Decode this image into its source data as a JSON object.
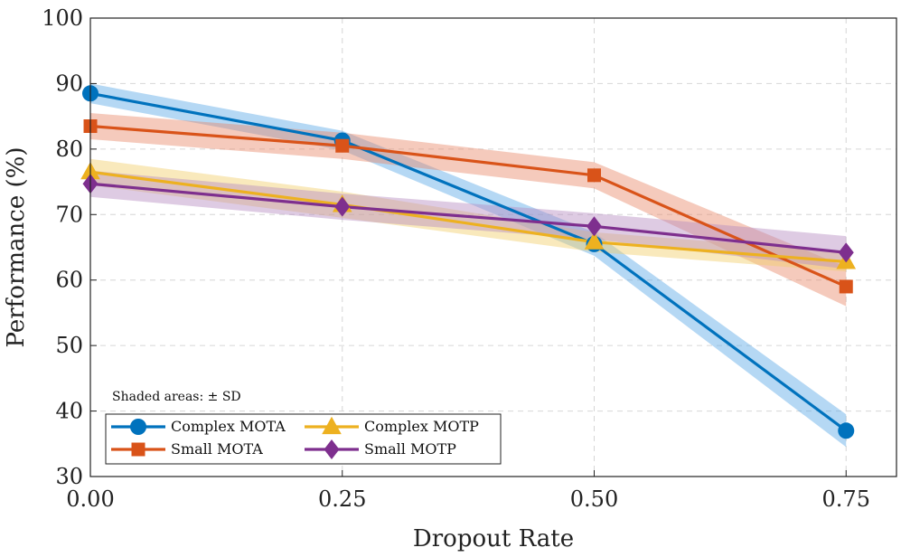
{
  "chart_data": {
    "type": "line",
    "title": "",
    "xlabel": "Dropout Rate",
    "ylabel": "Performance (%)",
    "x": [
      0.0,
      0.25,
      0.5,
      0.75
    ],
    "x_tick_labels": [
      "0.00",
      "0.25",
      "0.50",
      "0.75"
    ],
    "y_ticks": [
      30,
      40,
      50,
      60,
      70,
      80,
      90,
      100
    ],
    "xlim": [
      0.0,
      0.8
    ],
    "ylim": [
      30,
      100
    ],
    "grid": true,
    "annotation": "Shaded areas: ± SD",
    "legend_position": "bottom-left",
    "series": [
      {
        "name": "Complex MOTA",
        "color": "#0072BD",
        "band_color": "#5aa9e6",
        "marker": "circle",
        "values": [
          88.5,
          81.3,
          65.5,
          37.0
        ],
        "sd": [
          1.5,
          1.5,
          1.8,
          2.5
        ]
      },
      {
        "name": "Small MOTA",
        "color": "#D95319",
        "band_color": "#e8896a",
        "marker": "square",
        "values": [
          83.5,
          80.5,
          76.0,
          59.0
        ],
        "sd": [
          2.0,
          2.0,
          2.0,
          3.0
        ]
      },
      {
        "name": "Complex MOTP",
        "color": "#EDB120",
        "band_color": "#f2cf6a",
        "marker": "triangle",
        "values": [
          76.5,
          71.5,
          65.8,
          62.8
        ],
        "sd": [
          2.0,
          2.0,
          1.5,
          1.5
        ]
      },
      {
        "name": "Small MOTP",
        "color": "#7E2F8E",
        "band_color": "#b58bc2",
        "marker": "diamond",
        "values": [
          74.7,
          71.2,
          68.2,
          64.2
        ],
        "sd": [
          2.0,
          2.0,
          2.0,
          2.5
        ]
      }
    ]
  }
}
